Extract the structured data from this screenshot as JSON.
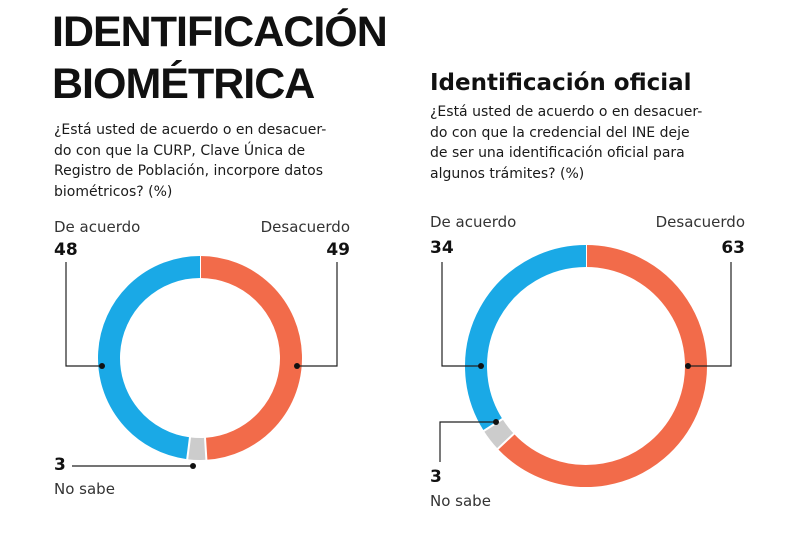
{
  "header": {
    "title_line1": "IDENTIFICACIÓN",
    "title_line2": "BIOMÉTRICA"
  },
  "chart_data": [
    {
      "type": "pie",
      "question": "¿Está usted de acuerdo o en desacuer-do con que la CURP, Clave Única de Registro de Población, incorpore datos biométricos? (%)",
      "question_lines": [
        "¿Está usted de acuerdo o en desacuer-",
        "do con que la CURP, Clave Única de",
        "Registro de Población, incorpore datos",
        "biométricos? (%)"
      ],
      "categories": [
        "Desacuerdo",
        "No sabe",
        "De acuerdo"
      ],
      "values": [
        49,
        3,
        48
      ],
      "colors": [
        "#f26b4a",
        "#cccccc",
        "#1aa9e6"
      ],
      "labels": {
        "agree": "De acuerdo",
        "agree_value": "48",
        "disagree": "Desacuerdo",
        "disagree_value": "49",
        "unknown": "No sabe",
        "unknown_value": "3"
      }
    },
    {
      "type": "pie",
      "title": "Identificación oficial",
      "question": "¿Está usted de acuerdo o en desacuer-do con que la credencial del INE deje de ser una identificación oficial para algunos trámites? (%)",
      "question_lines": [
        "¿Está usted de acuerdo o en desacuer-",
        "do con que la credencial del INE deje",
        "de ser una identificación oficial para",
        "algunos trámites? (%)"
      ],
      "categories": [
        "Desacuerdo",
        "No sabe",
        "De acuerdo"
      ],
      "values": [
        63,
        3,
        34
      ],
      "colors": [
        "#f26b4a",
        "#cccccc",
        "#1aa9e6"
      ],
      "labels": {
        "agree": "De acuerdo",
        "agree_value": "34",
        "disagree": "Desacuerdo",
        "disagree_value": "63",
        "unknown": "No sabe",
        "unknown_value": "3"
      }
    }
  ]
}
